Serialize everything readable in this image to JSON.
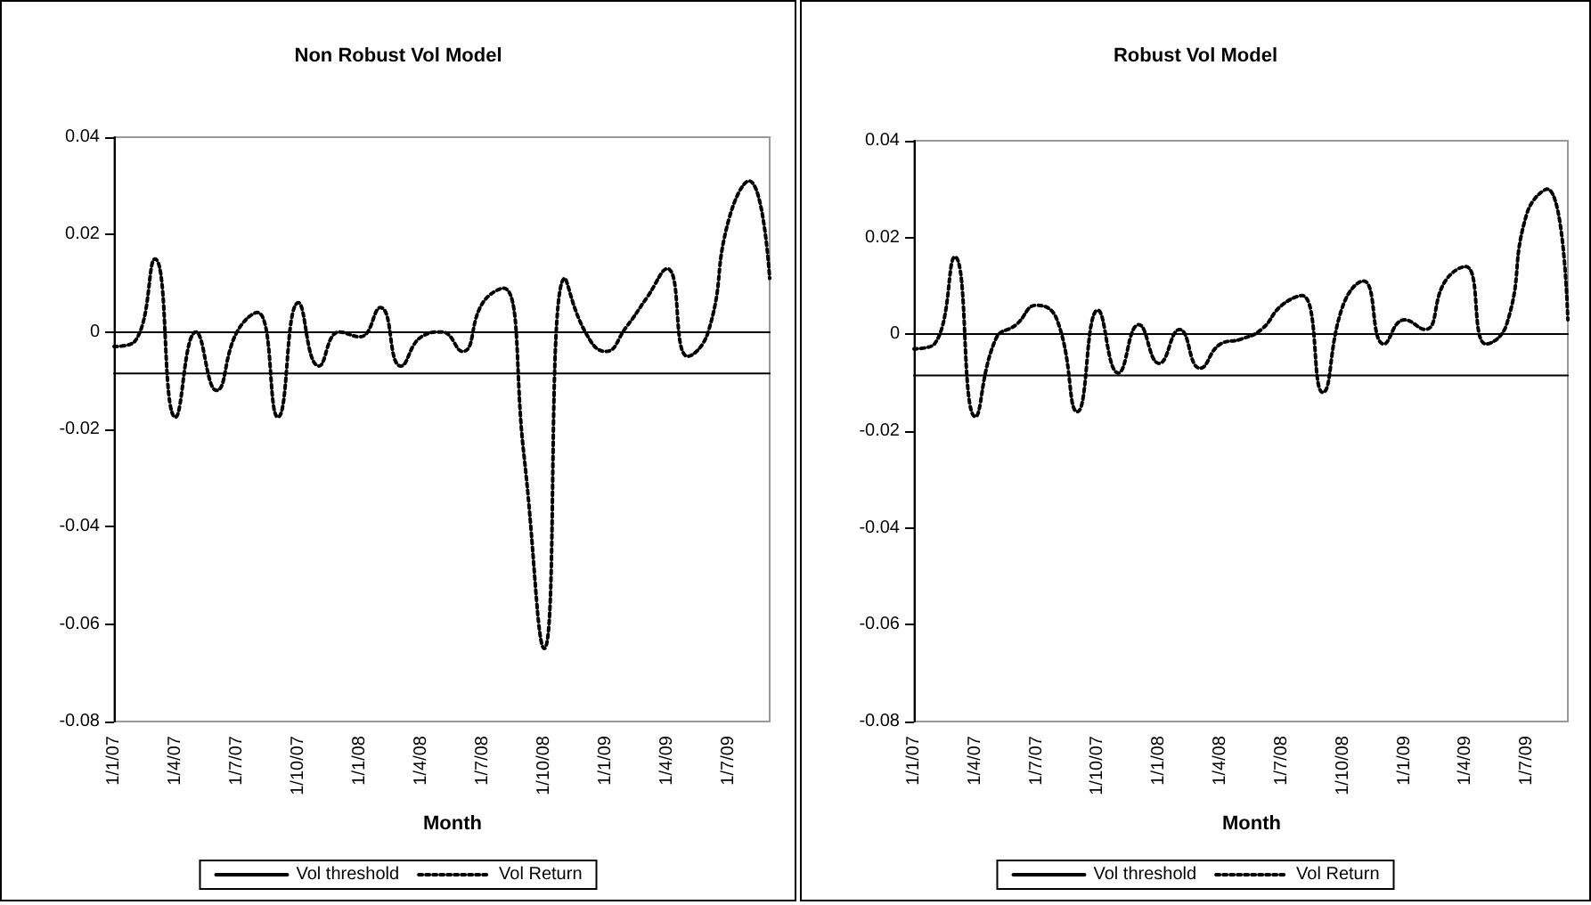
{
  "chart_data": [
    {
      "type": "line",
      "title": "Non Robust Vol Model",
      "xlabel": "Month",
      "categories": [
        "1/1/07",
        null,
        null,
        "1/4/07",
        null,
        null,
        "1/7/07",
        null,
        null,
        "1/10/07",
        null,
        null,
        "1/1/08",
        null,
        null,
        "1/4/08",
        null,
        null,
        "1/7/08",
        null,
        null,
        "1/10/08",
        null,
        null,
        "1/1/09",
        null,
        null,
        "1/4/09",
        null,
        null,
        "1/7/09",
        null,
        null
      ],
      "series": [
        {
          "name": "Vol threshold",
          "color": "#000000",
          "line_style": "solid",
          "values": [
            -0.0085,
            -0.0085,
            -0.0085,
            -0.0085,
            -0.0085,
            -0.0085,
            -0.0085,
            -0.0085,
            -0.0085,
            -0.0085,
            -0.0085,
            -0.0085,
            -0.0085,
            -0.0085,
            -0.0085,
            -0.0085,
            -0.0085,
            -0.0085,
            -0.0085,
            -0.0085,
            -0.0085,
            -0.0085,
            -0.0085,
            -0.0085,
            -0.0085,
            -0.0085,
            -0.0085,
            -0.0085,
            -0.0085,
            -0.0085,
            -0.0085,
            -0.0085,
            -0.0085
          ]
        },
        {
          "name": "Vol Return",
          "color": "#000000",
          "line_style": "dotted",
          "values": [
            -0.003,
            -0.002,
            0.015,
            -0.0175,
            0,
            -0.012,
            0,
            0.004,
            -0.0175,
            0.006,
            -0.007,
            0,
            -0.001,
            0.005,
            -0.007,
            -0.001,
            0,
            -0.004,
            0.006,
            0.009,
            -0.025,
            -0.065,
            0.011,
            0,
            -0.004,
            0.001,
            0.007,
            0.013,
            -0.005,
            0,
            0.023,
            0.031,
            0.011
          ]
        }
      ],
      "ylim": [
        -0.08,
        0.04
      ],
      "yticks": [
        -0.08,
        -0.06,
        -0.04,
        -0.02,
        0,
        0.02,
        0.04
      ],
      "grid": false,
      "legend": "bottom",
      "marker": "none"
    },
    {
      "type": "line",
      "title": "Robust Vol Model",
      "xlabel": "Month",
      "categories": [
        "1/1/07",
        null,
        null,
        "1/4/07",
        null,
        null,
        "1/7/07",
        null,
        null,
        "1/10/07",
        null,
        null,
        "1/1/08",
        null,
        null,
        "1/4/08",
        null,
        null,
        "1/7/08",
        null,
        null,
        "1/10/08",
        null,
        null,
        "1/1/09",
        null,
        null,
        "1/4/09",
        null,
        null,
        "1/7/09",
        null,
        null
      ],
      "series": [
        {
          "name": "Vol threshold",
          "color": "#000000",
          "line_style": "solid",
          "values": [
            -0.0085,
            -0.0085,
            -0.0085,
            -0.0085,
            -0.0085,
            -0.0085,
            -0.0085,
            -0.0085,
            -0.0085,
            -0.0085,
            -0.0085,
            -0.0085,
            -0.0085,
            -0.0085,
            -0.0085,
            -0.0085,
            -0.0085,
            -0.0085,
            -0.0085,
            -0.0085,
            -0.0085,
            -0.0085,
            -0.0085,
            -0.0085,
            -0.0085,
            -0.0085,
            -0.0085,
            -0.0085,
            -0.0085,
            -0.0085,
            -0.0085,
            -0.0085,
            -0.0085
          ]
        },
        {
          "name": "Vol Return",
          "color": "#000000",
          "line_style": "dotted",
          "values": [
            -0.003,
            -0.002,
            0.016,
            -0.017,
            -0.001,
            0.002,
            0.006,
            0.003,
            -0.016,
            0.005,
            -0.008,
            0.002,
            -0.006,
            0.001,
            -0.007,
            -0.002,
            -0.001,
            0.001,
            0.006,
            0.008,
            -0.012,
            0.006,
            0.011,
            -0.002,
            0.003,
            0.001,
            0.011,
            0.014,
            -0.002,
            0.002,
            0.025,
            0.03,
            0.003
          ]
        }
      ],
      "ylim": [
        -0.08,
        0.04
      ],
      "yticks": [
        -0.08,
        -0.06,
        -0.04,
        -0.02,
        0,
        0.02,
        0.04
      ],
      "grid": false,
      "legend": "bottom",
      "marker": "none"
    }
  ]
}
